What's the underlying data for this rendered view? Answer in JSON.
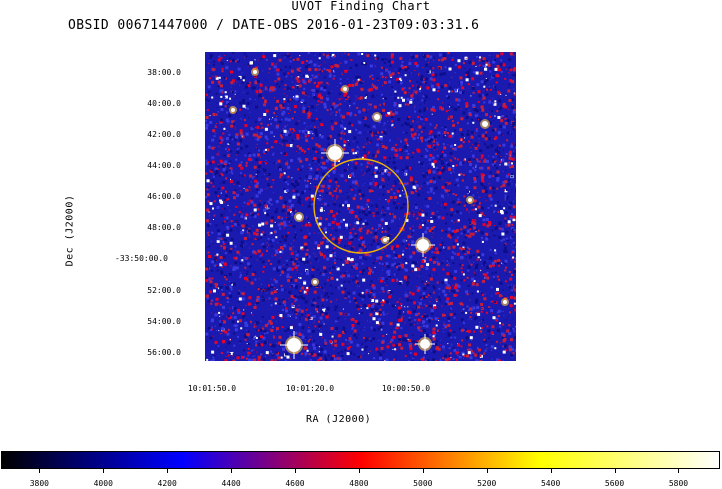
{
  "title": "UVOT Finding Chart",
  "subtitle": "OBSID 00671447000 / DATE-OBS 2016-01-23T09:03:31.6",
  "axes": {
    "xlabel": "RA (J2000)",
    "ylabel": "Dec (J2000)",
    "ra_ticks": [
      "10:01:50.0",
      "10:01:20.0",
      "10:00:50.0"
    ],
    "dec_ticks": [
      "38:00.0",
      "40:00.0",
      "42:00.0",
      "44:00.0",
      "46:00.0",
      "48:00.0",
      "-33:50:00.0",
      "52:00.0",
      "54:00.0",
      "56:00.0"
    ]
  },
  "image": {
    "background_color": "#1a1ab0",
    "noise_colors": [
      "#0d0d8a",
      "#3a3ae0",
      "#c81e3c",
      "#e6002a",
      "#ffffff"
    ],
    "circle_color": "#f0b400"
  },
  "colorbar": {
    "ticks": [
      "3800",
      "4000",
      "4200",
      "4400",
      "4600",
      "4800",
      "5000",
      "5200",
      "5400",
      "5600",
      "5800"
    ],
    "min": 3680,
    "max": 5930,
    "stops": [
      "#000000",
      "#0000ff",
      "#ff0000",
      "#ffff00",
      "#ffffff"
    ]
  }
}
